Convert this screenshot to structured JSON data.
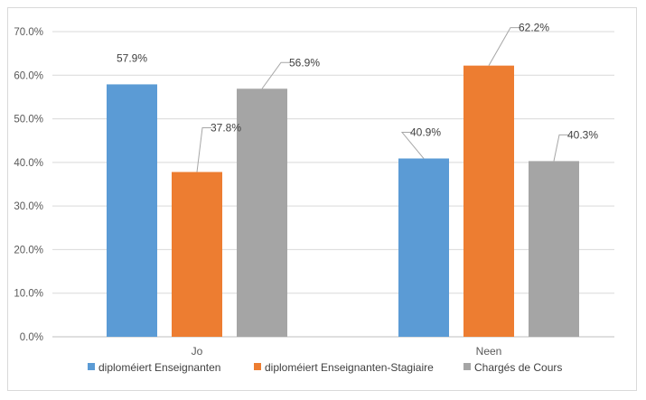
{
  "chart_data": {
    "type": "bar",
    "categories": [
      "Jo",
      "Neen"
    ],
    "series": [
      {
        "name": "diploméiert Enseignanten",
        "values": [
          57.9,
          40.9
        ],
        "color": "#5b9bd5"
      },
      {
        "name": "diploméiert Enseignanten-Stagiaire",
        "values": [
          37.8,
          62.2
        ],
        "color": "#ed7d31"
      },
      {
        "name": "Chargés de Cours",
        "values": [
          56.9,
          40.3
        ],
        "color": "#a5a5a5"
      }
    ],
    "data_labels": [
      [
        "57.9%",
        "40.9%"
      ],
      [
        "37.8%",
        "62.2%"
      ],
      [
        "56.9%",
        "40.3%"
      ]
    ],
    "y_ticks": [
      "0.0%",
      "10.0%",
      "20.0%",
      "30.0%",
      "40.0%",
      "50.0%",
      "60.0%",
      "70.0%"
    ],
    "ylim": [
      0,
      70
    ],
    "grid": true,
    "legend_position": "bottom",
    "title": "",
    "xlabel": "",
    "ylabel": ""
  }
}
